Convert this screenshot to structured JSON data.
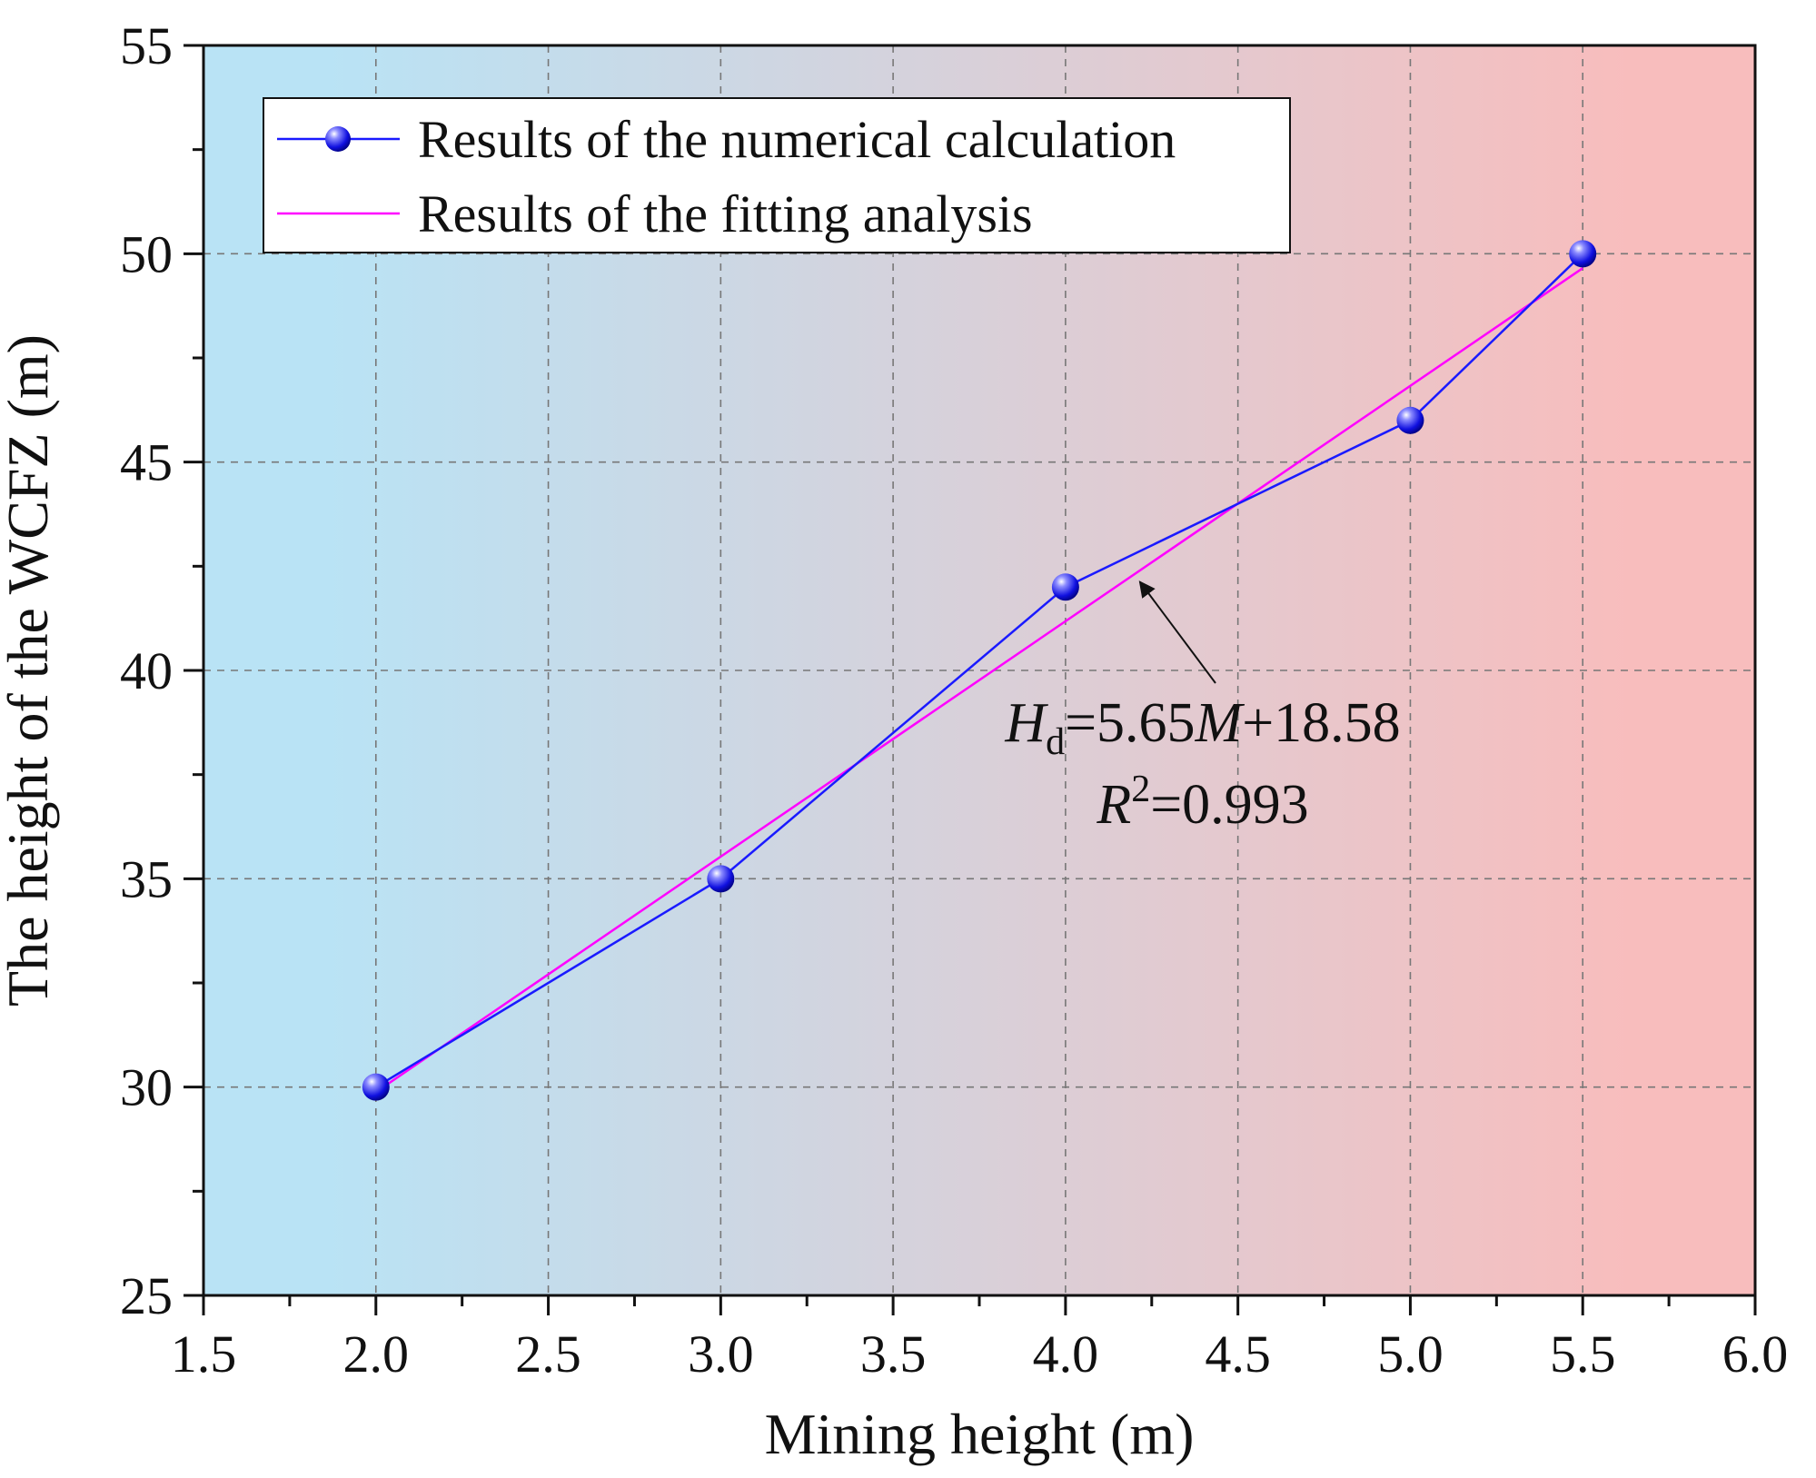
{
  "chart_data": {
    "type": "line",
    "xlabel": "Mining height (m)",
    "ylabel": "The height of the WCFZ (m)",
    "xlim": [
      1.5,
      6.0
    ],
    "ylim": [
      25,
      55
    ],
    "x_ticks": [
      "1.5",
      "2.0",
      "2.5",
      "3.0",
      "3.5",
      "4.0",
      "4.5",
      "5.0",
      "5.5",
      "6.0"
    ],
    "y_ticks": [
      "25",
      "30",
      "35",
      "40",
      "45",
      "50",
      "55"
    ],
    "grid": true,
    "legend_position": "top-left",
    "background_gradient": [
      "#b9e3f5",
      "#f8bdbd"
    ],
    "series": [
      {
        "name": "Results of the numerical calculation",
        "style": "line-markers",
        "color": "#1a1aff",
        "x": [
          2.0,
          3.0,
          4.0,
          5.0,
          5.5
        ],
        "y": [
          30,
          35,
          42,
          46,
          50
        ]
      },
      {
        "name": "Results of the fitting analysis",
        "style": "line",
        "color": "#ff00ff",
        "x": [
          2.0,
          5.5
        ],
        "y": [
          29.88,
          49.655
        ]
      }
    ],
    "annotation": {
      "H": "H",
      "d": "d",
      "eq_rest": "=5.65",
      "M": "M",
      "eq_const": "+18.58",
      "R": "R",
      "sup2": "2",
      "r2_value": "=0.993",
      "arrow_target": [
        4.2,
        42.3
      ],
      "text_anchor": [
        4.5,
        39.0
      ]
    }
  }
}
